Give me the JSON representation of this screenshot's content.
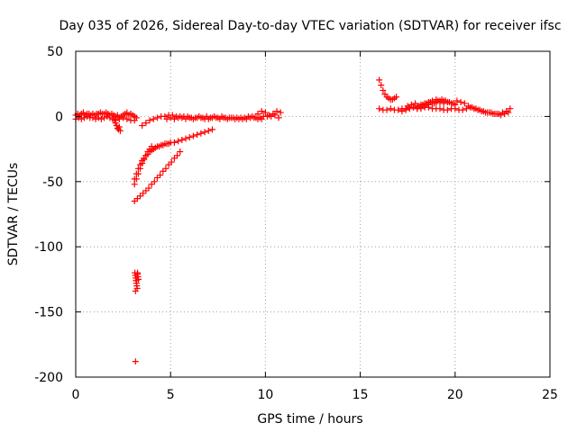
{
  "chart_data": {
    "type": "scatter",
    "title": "Day 035 of 2026, Sidereal Day-to-day VTEC variation (SDTVAR) for receiver ifsc",
    "xlabel": "GPS time / hours",
    "ylabel": "SDTVAR / TECUs",
    "xlim": [
      0,
      25
    ],
    "ylim": [
      -200,
      50
    ],
    "xticks": [
      0,
      5,
      10,
      15,
      20,
      25
    ],
    "yticks": [
      50,
      0,
      -50,
      -100,
      -150,
      -200
    ],
    "grid": true,
    "marker": "+",
    "color": "#ff0000",
    "series": [
      {
        "name": "ifsc",
        "x": [
          0.0,
          0.1,
          0.2,
          0.3,
          0.4,
          0.5,
          0.6,
          0.7,
          0.8,
          0.9,
          1.0,
          1.1,
          1.2,
          1.3,
          1.4,
          1.5,
          1.6,
          1.7,
          1.8,
          1.9,
          2.0,
          2.1,
          2.2,
          2.3,
          2.4,
          2.5,
          2.6,
          2.7,
          2.8,
          2.9,
          3.0,
          3.1,
          3.2,
          0.0,
          0.15,
          0.3,
          0.45,
          0.6,
          0.75,
          0.9,
          1.05,
          1.2,
          1.35,
          1.5,
          1.65,
          1.8,
          1.95,
          2.1,
          2.3,
          2.5,
          2.7,
          2.9,
          3.1,
          2.05,
          2.1,
          2.15,
          2.2,
          2.25,
          2.3,
          2.35,
          3.5,
          3.7,
          3.9,
          4.1,
          4.3,
          4.5,
          4.7,
          4.9,
          5.1,
          5.3,
          5.5,
          5.7,
          5.9,
          6.1,
          6.3,
          6.5,
          6.7,
          6.9,
          7.1,
          7.3,
          7.5,
          7.7,
          7.9,
          8.1,
          8.3,
          8.5,
          8.7,
          8.9,
          9.1,
          9.3,
          9.5,
          9.7,
          9.9,
          10.1,
          10.3,
          10.5,
          10.7,
          4.8,
          5.0,
          5.2,
          5.4,
          5.6,
          5.8,
          6.0,
          6.2,
          6.4,
          6.6,
          6.8,
          7.0,
          7.2,
          7.4,
          7.6,
          7.8,
          8.0,
          8.2,
          8.4,
          8.6,
          8.8,
          9.0,
          9.2,
          9.4,
          9.6,
          9.8,
          9.6,
          9.8,
          10.0,
          10.2,
          10.4,
          10.6,
          10.8,
          3.1,
          3.2,
          3.3,
          3.4,
          3.5,
          3.6,
          3.7,
          3.8,
          3.9,
          4.0,
          4.1,
          4.2,
          4.3,
          4.4,
          4.5,
          4.6,
          4.7,
          4.8,
          4.9,
          5.0,
          5.2,
          5.4,
          5.6,
          5.8,
          6.0,
          6.2,
          6.4,
          6.6,
          6.8,
          7.0,
          7.2,
          3.1,
          3.2,
          3.3,
          3.4,
          3.5,
          3.6,
          3.7,
          3.8,
          3.9,
          4.0,
          3.1,
          3.25,
          3.4,
          3.55,
          3.7,
          3.85,
          4.0,
          4.15,
          4.3,
          4.45,
          4.6,
          4.75,
          4.9,
          5.05,
          5.2,
          5.35,
          5.5,
          3.12,
          3.14,
          3.16,
          3.18,
          3.2,
          3.22,
          3.24,
          3.26,
          3.28,
          3.3,
          3.15,
          3.2,
          3.25,
          3.15,
          16.0,
          16.1,
          16.2,
          16.3,
          16.4,
          16.5,
          16.6,
          16.7,
          16.8,
          16.9,
          16.0,
          16.2,
          16.4,
          16.6,
          16.8,
          17.0,
          17.2,
          17.4,
          17.6,
          17.8,
          18.0,
          18.2,
          18.4,
          18.6,
          18.8,
          19.0,
          19.2,
          19.4,
          19.6,
          19.8,
          20.0,
          20.2,
          20.4,
          20.6,
          20.8,
          21.0,
          21.2,
          21.4,
          21.6,
          21.8,
          22.0,
          22.2,
          22.4,
          22.6,
          22.8,
          17.5,
          17.7,
          17.9,
          18.1,
          18.3,
          18.5,
          18.7,
          18.9,
          19.1,
          19.3,
          19.5,
          19.7,
          19.9,
          20.1,
          20.3,
          20.5,
          20.7,
          20.9,
          21.1,
          21.3,
          21.5,
          21.7,
          21.9,
          22.1,
          22.3,
          22.5,
          22.7,
          22.9,
          18.0,
          18.2,
          18.4,
          18.6,
          18.8,
          19.0,
          19.2,
          19.4,
          19.6,
          19.8,
          20.0,
          17.2,
          17.4,
          17.6,
          17.8,
          18.0,
          18.2,
          18.4,
          18.6,
          18.8,
          19.0,
          19.2,
          19.4
        ],
        "y": [
          1,
          2,
          1,
          2,
          3,
          1,
          2,
          2,
          1,
          2,
          1,
          2,
          2,
          3,
          2,
          2,
          3,
          2,
          1,
          2,
          1,
          0,
          1,
          -1,
          0,
          1,
          2,
          3,
          1,
          2,
          1,
          0,
          -1,
          -2,
          -1,
          -2,
          -1,
          0,
          -1,
          -1,
          -2,
          -1,
          -2,
          -1,
          0,
          -1,
          -2,
          -3,
          -2,
          -1,
          -2,
          -3,
          -3,
          -3,
          -5,
          -7,
          -9,
          -10,
          -8,
          -11,
          -7,
          -5,
          -3,
          -2,
          -1,
          0,
          0,
          1,
          1,
          0,
          0,
          0,
          0,
          -1,
          -1,
          0,
          -1,
          0,
          -1,
          0,
          -1,
          0,
          -1,
          -1,
          -1,
          -1,
          -1,
          -1,
          0,
          0,
          -1,
          -1,
          0,
          0,
          0,
          1,
          -1,
          -2,
          -1,
          -2,
          -1,
          -1,
          -2,
          -1,
          -2,
          -1,
          -1,
          -2,
          -2,
          -1,
          -1,
          -2,
          -1,
          -2,
          -1,
          -2,
          -2,
          -2,
          -2,
          -1,
          -1,
          -2,
          -2,
          2,
          4,
          3,
          1,
          2,
          4,
          3,
          -48,
          -44,
          -40,
          -37,
          -34,
          -32,
          -30,
          -29,
          -27,
          -26,
          -25,
          -24,
          -23,
          -23,
          -22,
          -22,
          -21,
          -21,
          -21,
          -20,
          -20,
          -19,
          -18,
          -17,
          -16,
          -15,
          -14,
          -13,
          -12,
          -11,
          -10,
          -52,
          -48,
          -44,
          -40,
          -36,
          -33,
          -30,
          -27,
          -25,
          -23,
          -65,
          -63,
          -61,
          -59,
          -57,
          -55,
          -52,
          -50,
          -47,
          -45,
          -42,
          -40,
          -37,
          -35,
          -32,
          -30,
          -27,
          -120,
          -122,
          -124,
          -126,
          -128,
          -130,
          -132,
          -120,
          -123,
          -125,
          -134,
          -126,
          -121,
          -188,
          28,
          24,
          20,
          17,
          15,
          14,
          13,
          13,
          14,
          15,
          6,
          5,
          5,
          6,
          5,
          5,
          6,
          6,
          7,
          7,
          6,
          6,
          7,
          7,
          6,
          6,
          6,
          5,
          5,
          6,
          6,
          5,
          5,
          6,
          7,
          6,
          5,
          4,
          3,
          3,
          2,
          2,
          1,
          2,
          3,
          8,
          9,
          10,
          8,
          9,
          10,
          11,
          10,
          12,
          13,
          12,
          11,
          10,
          12,
          11,
          10,
          8,
          7,
          6,
          5,
          4,
          3,
          3,
          2,
          2,
          3,
          4,
          6,
          6,
          7,
          8,
          9,
          10,
          11,
          12,
          12,
          11,
          10,
          9,
          4,
          5,
          6,
          7,
          8,
          9,
          10,
          11,
          12,
          13,
          11,
          10
        ]
      }
    ]
  }
}
